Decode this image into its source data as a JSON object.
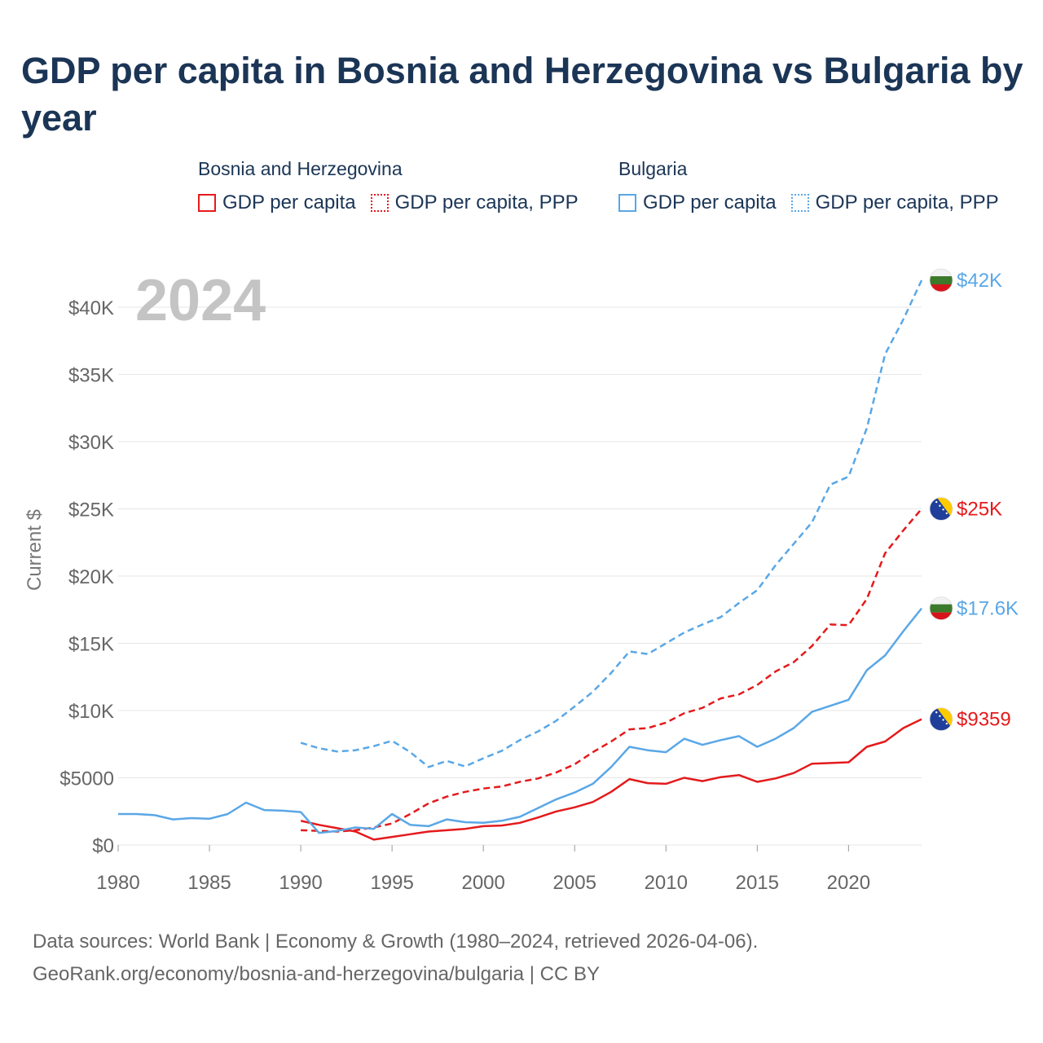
{
  "title": "GDP per capita in Bosnia and Herzegovina vs Bulgaria by year",
  "legend": {
    "groups": [
      {
        "name": "Bosnia and Herzegovina",
        "color": "#e41a1c",
        "items": [
          {
            "label": "GDP per capita",
            "style": "solid"
          },
          {
            "label": "GDP per capita, PPP",
            "style": "dotted"
          }
        ]
      },
      {
        "name": "Bulgaria",
        "color": "#5aa7e6",
        "items": [
          {
            "label": "GDP per capita",
            "style": "solid"
          },
          {
            "label": "GDP per capita, PPP",
            "style": "dotted"
          }
        ]
      }
    ]
  },
  "footer": {
    "line1": "Data sources: World Bank | Economy & Growth (1980–2024, retrieved 2026-04-06).",
    "line2": "GeoRank.org/economy/bosnia-and-herzegovina/bulgaria | CC BY"
  },
  "chart_data": {
    "type": "line",
    "title": "GDP per capita in Bosnia and Herzegovina vs Bulgaria by year",
    "year_label": "2024",
    "ylabel": "Current $",
    "xlabel": "",
    "xlim": [
      1980,
      2024
    ],
    "ylim": [
      0,
      42000
    ],
    "x_ticks": [
      1980,
      1985,
      1990,
      1995,
      2000,
      2005,
      2010,
      2015,
      2020
    ],
    "y_ticks": [
      {
        "value": 0,
        "label": "$0"
      },
      {
        "value": 5000,
        "label": "$5000"
      },
      {
        "value": 10000,
        "label": "$10K"
      },
      {
        "value": 15000,
        "label": "$15K"
      },
      {
        "value": 20000,
        "label": "$20K"
      },
      {
        "value": 25000,
        "label": "$25K"
      },
      {
        "value": 30000,
        "label": "$30K"
      },
      {
        "value": 35000,
        "label": "$35K"
      },
      {
        "value": 40000,
        "label": "$40K"
      }
    ],
    "grid": true,
    "series": [
      {
        "name": "Bosnia and Herzegovina GDP per capita",
        "country": "Bosnia and Herzegovina",
        "flag": "bosnia",
        "color": "#e41a1c",
        "dash": "solid",
        "end_label": "$9359",
        "x": [
          1990,
          1991,
          1992,
          1993,
          1994,
          1995,
          1996,
          1997,
          1998,
          1999,
          2000,
          2001,
          2002,
          2003,
          2004,
          2005,
          2006,
          2007,
          2008,
          2009,
          2010,
          2011,
          2012,
          2013,
          2014,
          2015,
          2016,
          2017,
          2018,
          2019,
          2020,
          2021,
          2022,
          2023,
          2024
        ],
        "values": [
          1800,
          1500,
          1250,
          1000,
          400,
          600,
          800,
          1000,
          1100,
          1200,
          1400,
          1450,
          1650,
          2050,
          2500,
          2800,
          3200,
          3950,
          4900,
          4600,
          4550,
          5000,
          4750,
          5050,
          5200,
          4700,
          4950,
          5350,
          6050,
          6100,
          6150,
          7300,
          7700,
          8700,
          9359
        ]
      },
      {
        "name": "Bosnia and Herzegovina GDP per capita, PPP",
        "country": "Bosnia and Herzegovina",
        "flag": "bosnia",
        "color": "#e41a1c",
        "dash": "dashed",
        "end_label": "$25K",
        "x": [
          1990,
          1991,
          1992,
          1993,
          1994,
          1995,
          1996,
          1997,
          1998,
          1999,
          2000,
          2001,
          2002,
          2003,
          2004,
          2005,
          2006,
          2007,
          2008,
          2009,
          2010,
          2011,
          2012,
          2013,
          2014,
          2015,
          2016,
          2017,
          2018,
          2019,
          2020,
          2021,
          2022,
          2023,
          2024
        ],
        "values": [
          1100,
          1050,
          1000,
          1100,
          1300,
          1600,
          2300,
          3100,
          3600,
          3950,
          4200,
          4350,
          4700,
          4950,
          5400,
          6000,
          6900,
          7700,
          8600,
          8700,
          9100,
          9800,
          10200,
          10900,
          11200,
          11900,
          12900,
          13600,
          14800,
          16400,
          16350,
          18300,
          21700,
          23400,
          25000
        ]
      },
      {
        "name": "Bulgaria GDP per capita",
        "country": "Bulgaria",
        "flag": "bulgaria",
        "color": "#5aa7e6",
        "dash": "solid",
        "end_label": "$17.6K",
        "x": [
          1980,
          1981,
          1982,
          1983,
          1984,
          1985,
          1986,
          1987,
          1988,
          1989,
          1990,
          1991,
          1992,
          1993,
          1994,
          1995,
          1996,
          1997,
          1998,
          1999,
          2000,
          2001,
          2002,
          2003,
          2004,
          2005,
          2006,
          2007,
          2008,
          2009,
          2010,
          2011,
          2012,
          2013,
          2014,
          2015,
          2016,
          2017,
          2018,
          2019,
          2020,
          2021,
          2022,
          2023,
          2024
        ],
        "values": [
          2300,
          2300,
          2220,
          1900,
          2000,
          1950,
          2300,
          3150,
          2600,
          2550,
          2450,
          900,
          1050,
          1300,
          1200,
          2300,
          1500,
          1400,
          1900,
          1700,
          1650,
          1800,
          2100,
          2750,
          3400,
          3900,
          4550,
          5800,
          7300,
          7050,
          6900,
          7900,
          7450,
          7800,
          8100,
          7300,
          7900,
          8700,
          9900,
          10350,
          10800,
          13000,
          14100,
          15900,
          17600
        ]
      },
      {
        "name": "Bulgaria GDP per capita, PPP",
        "country": "Bulgaria",
        "flag": "bulgaria",
        "color": "#5aa7e6",
        "dash": "dashed",
        "end_label": "$42K",
        "x": [
          1990,
          1991,
          1992,
          1993,
          1994,
          1995,
          1996,
          1997,
          1998,
          1999,
          2000,
          2001,
          2002,
          2003,
          2004,
          2005,
          2006,
          2007,
          2008,
          2009,
          2010,
          2011,
          2012,
          2013,
          2014,
          2015,
          2016,
          2017,
          2018,
          2019,
          2020,
          2021,
          2022,
          2023,
          2024
        ],
        "values": [
          7600,
          7200,
          6950,
          7050,
          7350,
          7750,
          6900,
          5800,
          6250,
          5850,
          6450,
          7000,
          7800,
          8450,
          9250,
          10300,
          11400,
          12800,
          14400,
          14200,
          15000,
          15800,
          16400,
          16950,
          18000,
          18950,
          20800,
          22400,
          24000,
          26800,
          27400,
          31000,
          36500,
          39100,
          42000
        ]
      }
    ]
  }
}
